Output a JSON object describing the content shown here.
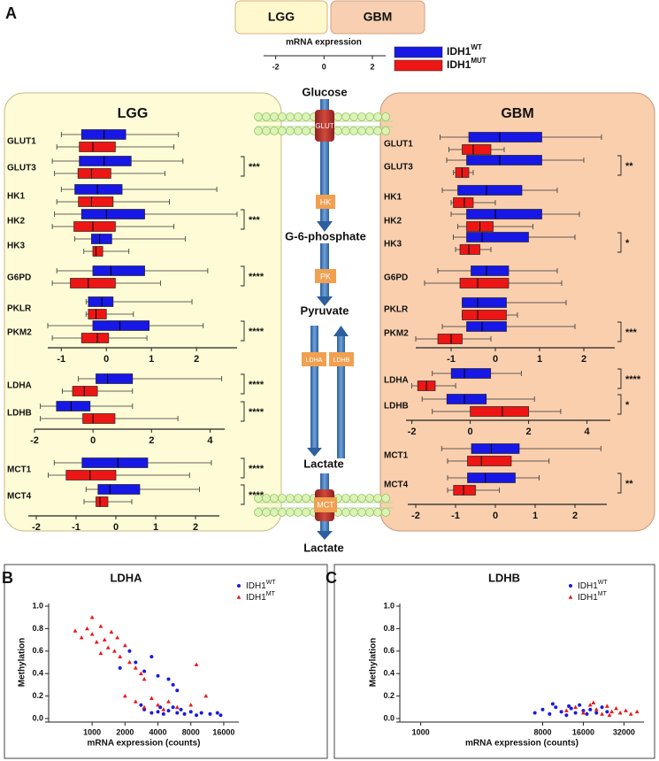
{
  "panel_labels": [
    "A",
    "B",
    "C"
  ],
  "header_boxes": [
    "LGG",
    "GBM"
  ],
  "panel_titles": [
    "LGG",
    "GBM"
  ],
  "scale": {
    "title": "mRNA expression",
    "xlim": [
      -2.5,
      2.55
    ],
    "xticks": [
      -2,
      0,
      2
    ]
  },
  "legend": [
    {
      "name": "IDH1",
      "sup": "WT",
      "color": "#1717e6"
    },
    {
      "name": "IDH1",
      "sup": "MUT",
      "color": "#ee1515"
    }
  ],
  "pathway": {
    "metabolites": [
      "Glucose",
      "G-6-phosphate",
      "Pyruvate",
      "Lactate",
      "Lactate"
    ],
    "enzymes": [
      "GLUT",
      "HK",
      "PK",
      "LDHA",
      "LDHB",
      "MCT"
    ]
  },
  "chart_data": [
    {
      "type": "box",
      "xlim": [
        -1.3,
        2.9
      ],
      "xticks": [
        -1,
        0,
        1,
        2
      ],
      "rows": [
        {
          "label": "GLUT1",
          "boxes": [
            {
              "min": -1.0,
              "q1": -0.55,
              "median": -0.05,
              "q3": 0.43,
              "max": 1.6
            },
            {
              "min": -1.1,
              "q1": -0.6,
              "median": -0.3,
              "q3": 0.2,
              "max": 1.5
            }
          ]
        },
        {
          "label": "GLUT3",
          "sig": "***",
          "boxes": [
            {
              "min": -1.2,
              "q1": -0.6,
              "median": -0.05,
              "q3": 0.55,
              "max": 1.7
            },
            {
              "min": -1.15,
              "q1": -0.63,
              "median": -0.33,
              "q3": 0.1,
              "max": 1.3
            }
          ]
        },
        {
          "label": "HK1",
          "boxes": [
            {
              "min": -1.0,
              "q1": -0.7,
              "median": -0.2,
              "q3": 0.35,
              "max": 2.45
            },
            {
              "min": -1.1,
              "q1": -0.62,
              "median": -0.33,
              "q3": 0.15,
              "max": 1.4
            }
          ]
        },
        {
          "label": "HK2",
          "sig": "***",
          "boxes": [
            {
              "min": -1.15,
              "q1": -0.55,
              "median": 0.0,
              "q3": 0.85,
              "max": 2.9
            },
            {
              "min": -1.2,
              "q1": -0.72,
              "median": -0.3,
              "q3": 0.2,
              "max": 1.5
            }
          ]
        },
        {
          "label": "HK3",
          "boxes": [
            {
              "min": -0.7,
              "q1": -0.33,
              "median": -0.15,
              "q3": 0.12,
              "max": 1.75
            },
            {
              "min": -0.5,
              "q1": -0.3,
              "median": -0.23,
              "q3": -0.08,
              "max": 0.5
            }
          ]
        },
        {
          "label": "G6PD",
          "sig": "****",
          "boxes": [
            {
              "min": -1.1,
              "q1": -0.3,
              "median": 0.1,
              "q3": 0.85,
              "max": 2.25
            },
            {
              "min": -1.2,
              "q1": -0.8,
              "median": -0.4,
              "q3": 0.2,
              "max": 1.2
            }
          ]
        },
        {
          "label": "PKLR",
          "boxes": [
            {
              "min": -0.45,
              "q1": -0.4,
              "median": -0.1,
              "q3": 0.15,
              "max": 1.9
            },
            {
              "min": -0.45,
              "q1": -0.4,
              "median": -0.23,
              "q3": 0.0,
              "max": 0.6
            }
          ]
        },
        {
          "label": "PKM2",
          "sig": "****",
          "boxes": [
            {
              "min": -1.3,
              "q1": -0.3,
              "median": 0.3,
              "q3": 0.95,
              "max": 2.15
            },
            {
              "min": -1.2,
              "q1": -0.55,
              "median": -0.2,
              "q3": 0.05,
              "max": 0.9
            }
          ]
        }
      ]
    },
    {
      "type": "box",
      "xlim": [
        -2,
        4.5
      ],
      "xticks": [
        -2,
        0,
        2,
        4
      ],
      "rows": [
        {
          "label": "LDHA",
          "sig": "****",
          "boxes": [
            {
              "min": -0.5,
              "q1": 0.1,
              "median": 0.5,
              "q3": 1.35,
              "max": 4.4
            },
            {
              "min": -1.05,
              "q1": -0.7,
              "median": -0.3,
              "q3": 0.15,
              "max": 1.35
            }
          ]
        },
        {
          "label": "LDHB",
          "sig": "****",
          "boxes": [
            {
              "min": -1.8,
              "q1": -1.25,
              "median": -0.75,
              "q3": -0.1,
              "max": 1.35
            },
            {
              "min": -1.8,
              "q1": -0.35,
              "median": 0.0,
              "q3": 0.75,
              "max": 2.9
            }
          ]
        }
      ]
    },
    {
      "type": "box",
      "xlim": [
        -2.2,
        2.6
      ],
      "xticks": [
        -2,
        -1,
        0,
        1,
        2
      ],
      "rows": [
        {
          "label": "MCT1",
          "sig": "****",
          "boxes": [
            {
              "min": -1.55,
              "q1": -0.85,
              "median": 0.05,
              "q3": 0.8,
              "max": 2.4
            },
            {
              "min": -1.7,
              "q1": -1.25,
              "median": -0.65,
              "q3": 0.0,
              "max": 1.85
            }
          ]
        },
        {
          "label": "MCT4",
          "sig": "****",
          "boxes": [
            {
              "min": -0.75,
              "q1": -0.45,
              "median": -0.15,
              "q3": 0.6,
              "max": 2.1
            },
            {
              "min": -0.8,
              "q1": -0.5,
              "median": -0.4,
              "q3": -0.2,
              "max": 0.4
            }
          ]
        }
      ]
    },
    {
      "type": "box",
      "xlim": [
        -1.8,
        2.7
      ],
      "xticks": [
        -1,
        0,
        1,
        2
      ],
      "rows": [
        {
          "label": "GLUT1",
          "boxes": [
            {
              "min": -1.25,
              "q1": -0.6,
              "median": 0.1,
              "q3": 1.05,
              "max": 2.4
            },
            {
              "min": -1.05,
              "q1": -0.75,
              "median": -0.5,
              "q3": -0.1,
              "max": 0.2
            }
          ]
        },
        {
          "label": "GLUT3",
          "sig": "**",
          "boxes": [
            {
              "min": -1.1,
              "q1": -0.65,
              "median": 0.1,
              "q3": 1.05,
              "max": 2.0
            },
            {
              "min": -0.95,
              "q1": -0.9,
              "median": -0.75,
              "q3": -0.6,
              "max": -0.5
            }
          ]
        },
        {
          "label": "HK1",
          "boxes": [
            {
              "min": -1.2,
              "q1": -0.85,
              "median": -0.2,
              "q3": 0.6,
              "max": 1.4
            },
            {
              "min": -1.0,
              "q1": -0.95,
              "median": -0.7,
              "q3": -0.5,
              "max": 0.0
            }
          ]
        },
        {
          "label": "HK2",
          "boxes": [
            {
              "min": -1.0,
              "q1": -0.65,
              "median": 0.0,
              "q3": 1.05,
              "max": 1.9
            },
            {
              "min": -0.85,
              "q1": -0.65,
              "median": -0.35,
              "q3": -0.05,
              "max": 0.85
            }
          ]
        },
        {
          "label": "HK3",
          "sig": "*",
          "boxes": [
            {
              "min": -0.95,
              "q1": -0.65,
              "median": -0.3,
              "q3": 0.75,
              "max": 1.8
            },
            {
              "min": -0.9,
              "q1": -0.8,
              "median": -0.6,
              "q3": -0.35,
              "max": -0.1
            }
          ]
        },
        {
          "label": "G6PD",
          "boxes": [
            {
              "min": -1.3,
              "q1": -0.55,
              "median": -0.2,
              "q3": 0.3,
              "max": 1.4
            },
            {
              "min": -1.6,
              "q1": -0.8,
              "median": -0.4,
              "q3": 0.3,
              "max": 1.5
            }
          ]
        },
        {
          "label": "PKLR",
          "boxes": [
            {
              "min": -0.75,
              "q1": -0.75,
              "median": -0.4,
              "q3": 0.25,
              "max": 1.6
            },
            {
              "min": -0.75,
              "q1": -0.75,
              "median": -0.4,
              "q3": 0.25,
              "max": 0.5
            }
          ]
        },
        {
          "label": "PKM2",
          "sig": "***",
          "boxes": [
            {
              "min": -1.2,
              "q1": -0.65,
              "median": -0.3,
              "q3": 0.25,
              "max": 1.8
            },
            {
              "min": -1.8,
              "q1": -1.3,
              "median": -1.0,
              "q3": -0.75,
              "max": -0.1
            }
          ]
        }
      ]
    },
    {
      "type": "box",
      "xlim": [
        -2.2,
        4.8
      ],
      "xticks": [
        -2,
        0,
        2,
        4
      ],
      "rows": [
        {
          "label": "LDHA",
          "sig": "****",
          "boxes": [
            {
              "min": -1.3,
              "q1": -0.65,
              "median": -0.2,
              "q3": 0.7,
              "max": 1.75
            },
            {
              "min": -2.0,
              "q1": -1.8,
              "median": -1.5,
              "q3": -1.2,
              "max": -0.5
            }
          ]
        },
        {
          "label": "LDHB",
          "sig": "*",
          "boxes": [
            {
              "min": -1.65,
              "q1": -0.8,
              "median": -0.2,
              "q3": 0.55,
              "max": 2.2
            },
            {
              "min": -1.3,
              "q1": 0.0,
              "median": 1.1,
              "q3": 2.0,
              "max": 3.1
            }
          ]
        }
      ]
    },
    {
      "type": "box",
      "xlim": [
        -2.2,
        2.8
      ],
      "xticks": [
        -2,
        -1,
        0,
        1,
        2
      ],
      "rows": [
        {
          "label": "MCT1",
          "boxes": [
            {
              "min": -1.35,
              "q1": -0.6,
              "median": -0.1,
              "q3": 0.6,
              "max": 2.65
            },
            {
              "min": -1.2,
              "q1": -0.7,
              "median": -0.35,
              "q3": 0.4,
              "max": 1.35
            }
          ]
        },
        {
          "label": "MCT4",
          "sig": "**",
          "boxes": [
            {
              "min": -1.2,
              "q1": -0.7,
              "median": -0.25,
              "q3": 0.5,
              "max": 1.1
            },
            {
              "min": -1.2,
              "q1": -1.05,
              "median": -0.8,
              "q3": -0.5,
              "max": 0.1
            }
          ]
        }
      ]
    },
    {
      "type": "scatter",
      "title": "LDHA",
      "x_label": "mRNA expression (counts)",
      "y_label": "Methylation",
      "log_x": true,
      "xlim": [
        400,
        22000
      ],
      "xticks": [
        1000,
        2000,
        4000,
        8000,
        16000
      ],
      "ylim": [
        0,
        1.0
      ],
      "yticks": [
        {
          "value": 0,
          "label": "0.0"
        },
        {
          "value": 0.2,
          "label": "0.2"
        },
        {
          "value": 0.4,
          "label": "0.4"
        },
        {
          "value": 0.6,
          "label": "0.6"
        },
        {
          "value": 0.8,
          "label": "0.8"
        },
        {
          "value": 1.0,
          "label": "1.0"
        }
      ],
      "series": [
        {
          "name": "IDH1",
          "sup": "WT",
          "color": "#1a1ae0",
          "marker": "circle",
          "x": [
            1800,
            2500,
            3000,
            3500,
            4000,
            5000,
            5500,
            6000,
            2200,
            3000,
            3500,
            4000,
            4500,
            5000,
            6000,
            7000,
            8000,
            9000,
            10000,
            12000,
            14000,
            15000,
            5500,
            6500,
            4200,
            2800
          ],
          "values": [
            0.45,
            0.5,
            0.42,
            0.55,
            0.38,
            0.35,
            0.3,
            0.25,
            0.6,
            0.08,
            0.05,
            0.06,
            0.04,
            0.07,
            0.05,
            0.04,
            0.06,
            0.03,
            0.05,
            0.04,
            0.05,
            0.03,
            0.1,
            0.08,
            0.1,
            0.12
          ]
        },
        {
          "name": "IDH1",
          "sup": "MT",
          "color": "#ee1515",
          "marker": "triangle",
          "x": [
            700,
            800,
            900,
            1000,
            1100,
            1200,
            1300,
            1400,
            1500,
            1600,
            1800,
            2000,
            2200,
            2500,
            2800,
            3000,
            2000,
            2500,
            3000,
            3500,
            4000,
            4500,
            5000,
            6000,
            8000,
            9000,
            11000,
            1000,
            1200,
            1700
          ],
          "values": [
            0.78,
            0.72,
            0.8,
            0.75,
            0.68,
            0.82,
            0.7,
            0.63,
            0.77,
            0.6,
            0.55,
            0.65,
            0.5,
            0.45,
            0.4,
            0.35,
            0.2,
            0.15,
            0.1,
            0.18,
            0.12,
            0.08,
            0.15,
            0.1,
            0.12,
            0.48,
            0.2,
            0.9,
            0.58,
            0.72
          ]
        }
      ]
    },
    {
      "type": "scatter",
      "title": "LDHB",
      "x_label": "mRNA expression (counts)",
      "y_label": "Methylation",
      "log_x": true,
      "xlim": [
        700,
        45000
      ],
      "xticks": [
        1000,
        8000,
        16000,
        32000
      ],
      "ylim": [
        0,
        1.0
      ],
      "yticks": [
        {
          "value": 0,
          "label": "0.0"
        },
        {
          "value": 0.2,
          "label": "0.2"
        },
        {
          "value": 0.4,
          "label": "0.4"
        },
        {
          "value": 0.6,
          "label": "0.6"
        },
        {
          "value": 0.8,
          "label": "0.8"
        },
        {
          "value": 1.0,
          "label": "1.0"
        }
      ],
      "series": [
        {
          "name": "IDH1",
          "sup": "WT",
          "color": "#1a1ae0",
          "marker": "circle",
          "x": [
            7000,
            8000,
            9000,
            10000,
            11000,
            12000,
            13000,
            14000,
            15000,
            16000,
            17000,
            18000,
            20000,
            22000,
            24000,
            9500,
            12500
          ],
          "values": [
            0.05,
            0.08,
            0.04,
            0.1,
            0.06,
            0.03,
            0.09,
            0.05,
            0.12,
            0.07,
            0.04,
            0.08,
            0.05,
            0.1,
            0.06,
            0.13,
            0.11
          ]
        },
        {
          "name": "IDH1",
          "sup": "MT",
          "color": "#ee1515",
          "marker": "triangle",
          "x": [
            12000,
            14000,
            16000,
            18000,
            20000,
            22000,
            24000,
            26000,
            28000,
            30000,
            33000,
            36000,
            40000,
            19000,
            25000
          ],
          "values": [
            0.07,
            0.1,
            0.05,
            0.12,
            0.08,
            0.04,
            0.11,
            0.06,
            0.09,
            0.05,
            0.07,
            0.04,
            0.06,
            0.14,
            0.03
          ]
        }
      ]
    }
  ]
}
